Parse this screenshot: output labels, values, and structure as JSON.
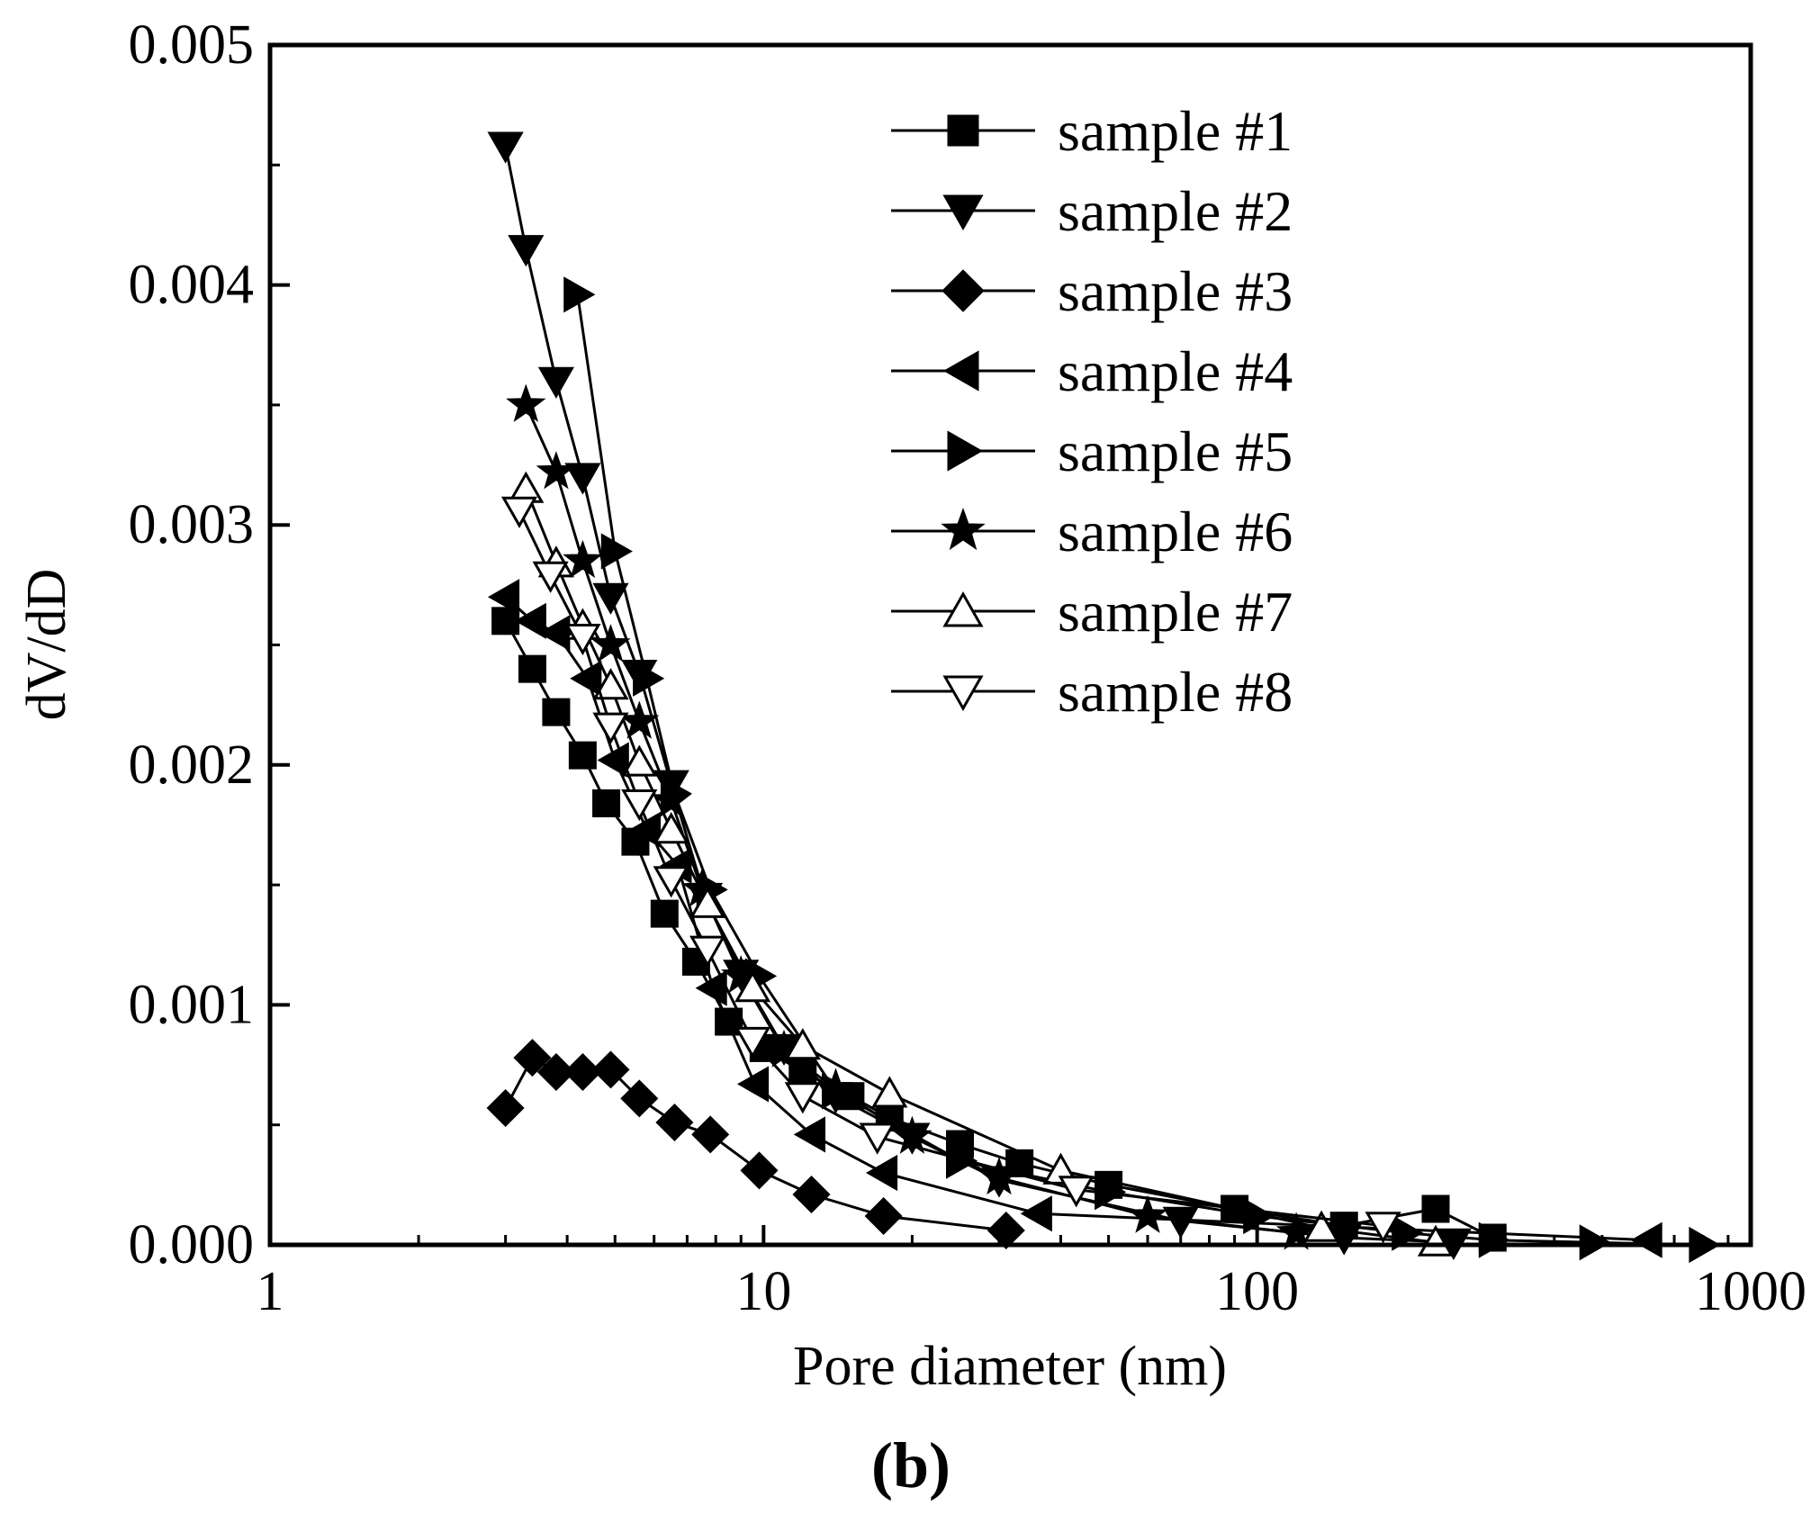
{
  "chart_data": {
    "type": "line",
    "title": "",
    "xlabel": "Pore diameter (nm)",
    "ylabel": "dV/dD",
    "x_scale": "log",
    "xlim": [
      1,
      1000
    ],
    "ylim": [
      0,
      0.005
    ],
    "x_ticks": [
      1,
      10,
      100,
      1000
    ],
    "x_tick_labels": [
      "1",
      "10",
      "100",
      "1000"
    ],
    "y_ticks": [
      0,
      0.001,
      0.002,
      0.003,
      0.004,
      0.005
    ],
    "y_tick_labels": [
      "0.000",
      "0.001",
      "0.002",
      "0.003",
      "0.004",
      "0.005"
    ],
    "legend_position": "top-right",
    "panel_label": "(b)",
    "grid": false,
    "series": [
      {
        "name": "sample #1",
        "marker": "square",
        "filled": true,
        "x": [
          3.0,
          3.4,
          3.8,
          4.3,
          4.8,
          5.5,
          6.3,
          7.3,
          8.5,
          10.0,
          12.0,
          15.0,
          18.0,
          25.0,
          33.0,
          50.0,
          90.0,
          150.0,
          230.0,
          300.0
        ],
        "y": [
          0.0026,
          0.0024,
          0.00222,
          0.00204,
          0.00184,
          0.00168,
          0.00138,
          0.00118,
          0.00093,
          0.00082,
          0.00072,
          0.00062,
          0.00053,
          0.00042,
          0.00034,
          0.00025,
          0.00015,
          8e-05,
          0.00015,
          3e-05
        ]
      },
      {
        "name": "sample #2",
        "marker": "triangle-down",
        "filled": true,
        "x": [
          3.0,
          3.3,
          3.8,
          4.3,
          4.9,
          5.6,
          6.5,
          7.6,
          9.0,
          11.0,
          14.0,
          20.0,
          30.0,
          70.0,
          150.0,
          250.0
        ],
        "y": [
          0.00458,
          0.00415,
          0.0036,
          0.0032,
          0.0027,
          0.00238,
          0.00192,
          0.00145,
          0.00113,
          0.00082,
          0.00062,
          0.00045,
          0.00027,
          0.0001,
          3e-05,
          1e-05
        ]
      },
      {
        "name": "sample #3",
        "marker": "diamond",
        "filled": true,
        "x": [
          3.0,
          3.4,
          3.8,
          4.3,
          4.9,
          5.6,
          6.6,
          7.8,
          9.8,
          12.5,
          17.5,
          31.0
        ],
        "y": [
          0.00057,
          0.00078,
          0.00072,
          0.00072,
          0.00073,
          0.00061,
          0.00051,
          0.00046,
          0.00031,
          0.00021,
          0.00012,
          6e-05
        ]
      },
      {
        "name": "sample #4",
        "marker": "triangle-left",
        "filled": true,
        "x": [
          3.0,
          3.4,
          3.8,
          4.4,
          5.0,
          5.8,
          6.7,
          7.9,
          9.6,
          12.5,
          17.5,
          36.0,
          620.0
        ],
        "y": [
          0.0027,
          0.0026,
          0.00255,
          0.00236,
          0.00202,
          0.00173,
          0.00158,
          0.00107,
          0.00067,
          0.00046,
          0.0003,
          0.00013,
          2e-05
        ]
      },
      {
        "name": "sample #5",
        "marker": "triangle-right",
        "filled": true,
        "x": [
          4.2,
          5.0,
          5.8,
          6.6,
          7.8,
          9.8,
          14.0,
          25.0,
          50.0,
          100.0,
          200.0,
          300.0,
          480.0,
          800.0
        ],
        "y": [
          0.00396,
          0.00289,
          0.00236,
          0.00188,
          0.00148,
          0.00112,
          0.00064,
          0.00035,
          0.00022,
          0.00012,
          5e-05,
          2e-05,
          1e-05,
          0.0
        ]
      },
      {
        "name": "sample #6",
        "marker": "star",
        "filled": true,
        "x": [
          3.3,
          3.8,
          4.3,
          4.9,
          5.6,
          6.5,
          7.5,
          9.0,
          11.0,
          14.0,
          20.0,
          30.0,
          60.0,
          120.0
        ],
        "y": [
          0.0035,
          0.00322,
          0.00285,
          0.0025,
          0.00218,
          0.00185,
          0.00148,
          0.00112,
          0.00081,
          0.00065,
          0.00045,
          0.00028,
          0.00012,
          5e-05
        ]
      },
      {
        "name": "sample #7",
        "marker": "triangle-up",
        "filled": false,
        "x": [
          3.3,
          3.8,
          4.3,
          4.9,
          5.6,
          6.5,
          7.7,
          9.5,
          12.0,
          18.0,
          40.0,
          135.0,
          230.0
        ],
        "y": [
          0.00315,
          0.00284,
          0.00258,
          0.00233,
          0.00201,
          0.00173,
          0.00142,
          0.00107,
          0.00083,
          0.00063,
          0.00031,
          7e-05,
          1e-05
        ]
      },
      {
        "name": "sample #8",
        "marker": "triangle-down",
        "filled": false,
        "x": [
          3.2,
          3.7,
          4.3,
          4.9,
          5.6,
          6.5,
          7.7,
          9.5,
          12.0,
          17.0,
          43.0,
          180.0
        ],
        "y": [
          0.00306,
          0.00279,
          0.00253,
          0.00216,
          0.00184,
          0.00152,
          0.00123,
          0.00085,
          0.00062,
          0.00045,
          0.00023,
          8e-05
        ]
      }
    ]
  }
}
